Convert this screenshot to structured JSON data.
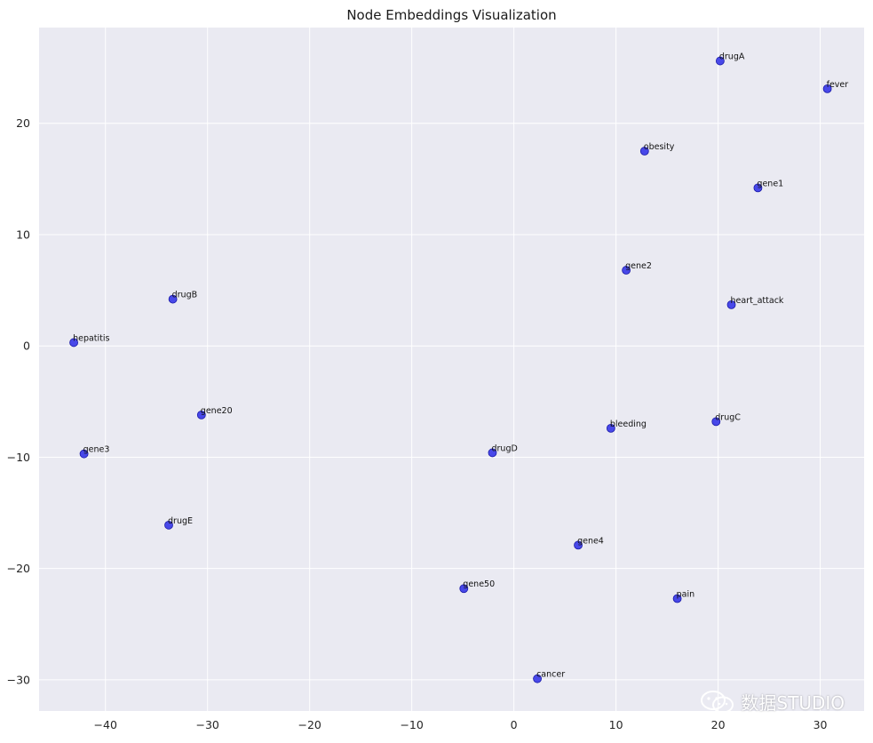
{
  "chart_data": {
    "type": "scatter",
    "title": "Node Embeddings Visualization",
    "xlabel": "",
    "ylabel": "",
    "xlim": [
      -46.5,
      34.3
    ],
    "ylim": [
      -32.8,
      28.6
    ],
    "xticks": [
      -40,
      -30,
      -20,
      -10,
      0,
      10,
      20,
      30
    ],
    "yticks": [
      -30,
      -20,
      -10,
      0,
      10,
      20
    ],
    "grid": true,
    "legend": "none",
    "point_color": "#1f1fe6",
    "background_color": "#eaeaf2",
    "points": [
      {
        "label": "drugA",
        "x": 20.2,
        "y": 25.6
      },
      {
        "label": "fever",
        "x": 30.7,
        "y": 23.1
      },
      {
        "label": "obesity",
        "x": 12.8,
        "y": 17.5
      },
      {
        "label": "gene1",
        "x": 23.9,
        "y": 14.2
      },
      {
        "label": "gene2",
        "x": 11.0,
        "y": 6.8
      },
      {
        "label": "heart_attack",
        "x": 21.3,
        "y": 3.7
      },
      {
        "label": "drugB",
        "x": -33.4,
        "y": 4.2
      },
      {
        "label": "hepatitis",
        "x": -43.1,
        "y": 0.3
      },
      {
        "label": "gene20",
        "x": -30.6,
        "y": -6.2
      },
      {
        "label": "drugC",
        "x": 19.8,
        "y": -6.8
      },
      {
        "label": "bleeding",
        "x": 9.5,
        "y": -7.4
      },
      {
        "label": "gene3",
        "x": -42.1,
        "y": -9.7
      },
      {
        "label": "drugD",
        "x": -2.1,
        "y": -9.6
      },
      {
        "label": "drugE",
        "x": -33.8,
        "y": -16.1
      },
      {
        "label": "gene4",
        "x": 6.3,
        "y": -17.9
      },
      {
        "label": "gene50",
        "x": -4.9,
        "y": -21.8
      },
      {
        "label": "pain",
        "x": 16.0,
        "y": -22.7
      },
      {
        "label": "cancer",
        "x": 2.3,
        "y": -29.9
      }
    ]
  },
  "watermark": {
    "text": "数据STUDIO",
    "icon": "wechat-icon"
  }
}
